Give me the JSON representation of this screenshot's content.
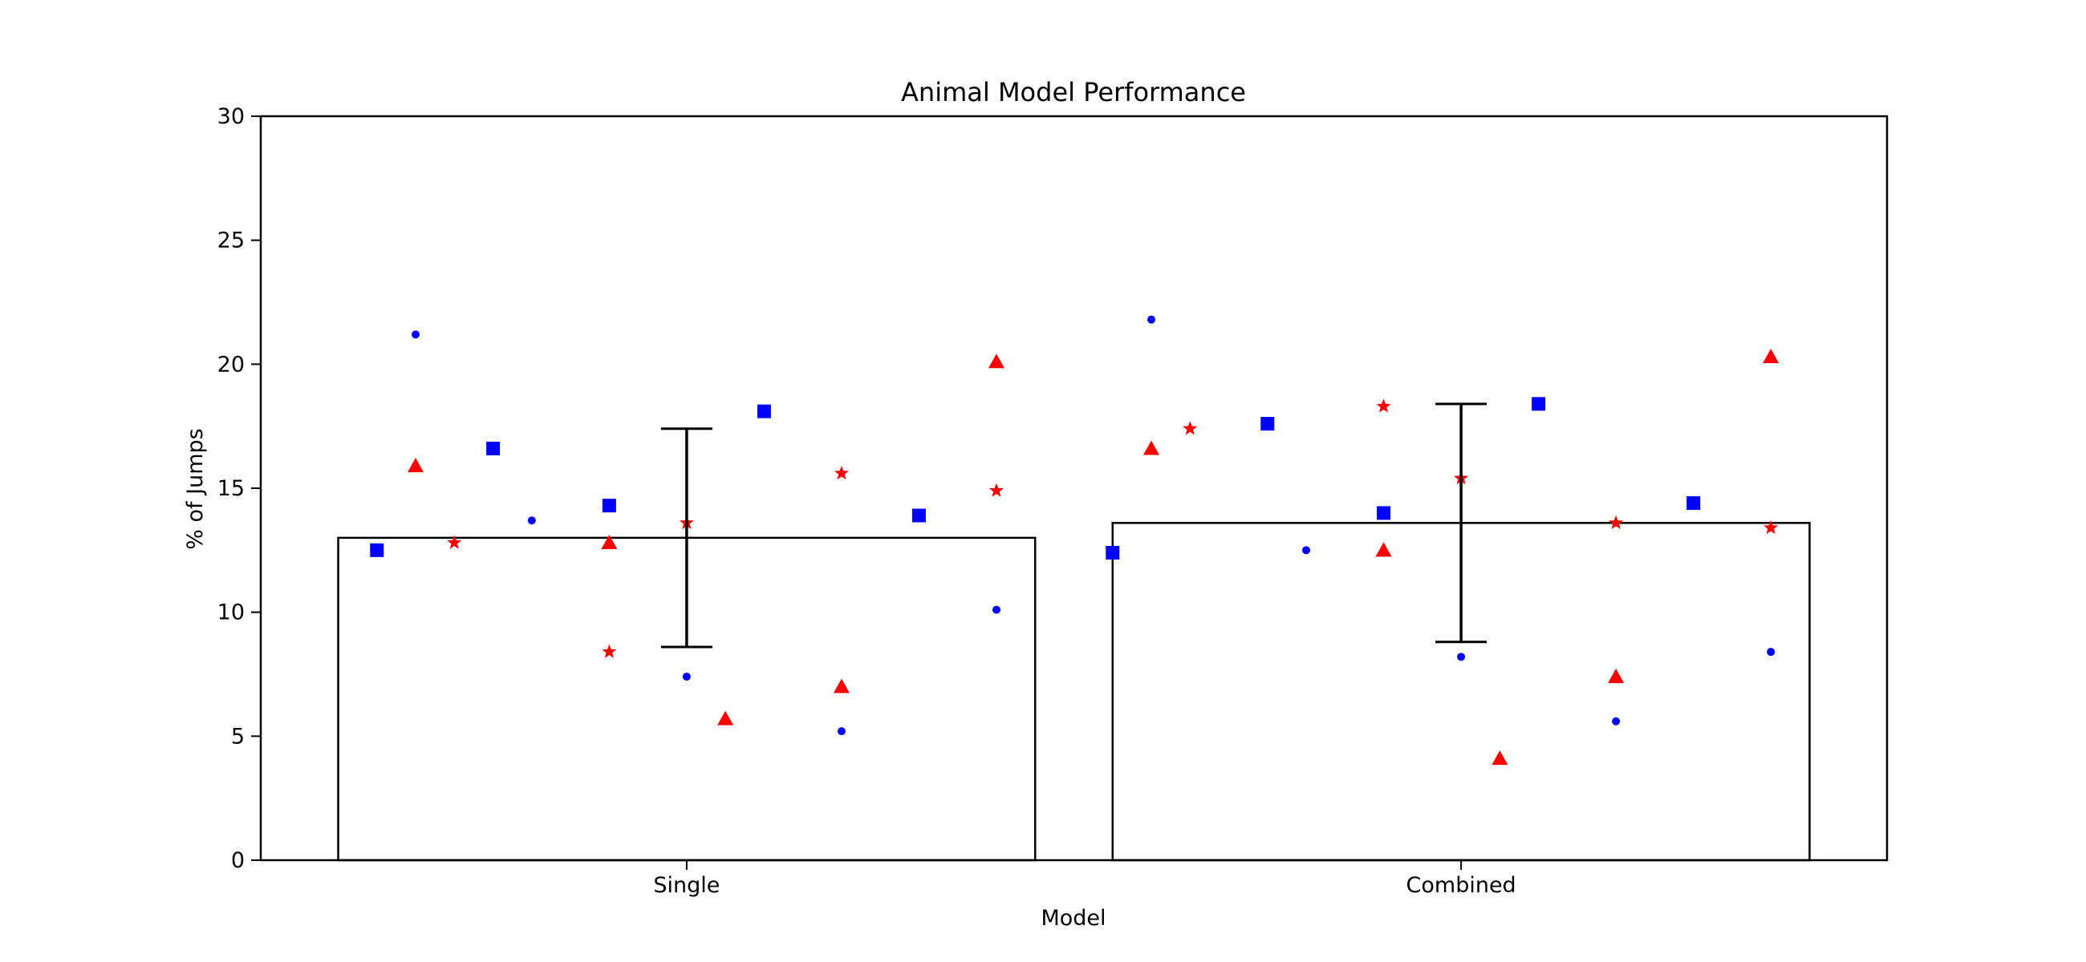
{
  "chart_data": {
    "type": "bar",
    "title": "Animal Model Performance",
    "xlabel": "Model",
    "ylabel": "% of Jumps",
    "categories": [
      "Single",
      "Combined"
    ],
    "ylim": [
      0,
      30
    ],
    "yticks": [
      0,
      5,
      10,
      15,
      20,
      25,
      30
    ],
    "ytick_labels": [
      "0",
      "5",
      "10",
      "15",
      "20",
      "25",
      "30"
    ],
    "grid": false,
    "bars": [
      {
        "category": "Single",
        "value": 13.0,
        "error_low": 8.6,
        "error_high": 17.4
      },
      {
        "category": "Combined",
        "value": 13.6,
        "error_low": 8.8,
        "error_high": 18.4
      }
    ],
    "marker_colors": {
      "blue": "#0000ff",
      "red": "#ff0000"
    },
    "points": [
      {
        "category": "Single",
        "offset": -0.4,
        "y": 12.5,
        "marker": "square",
        "color": "blue"
      },
      {
        "category": "Single",
        "offset": -0.35,
        "y": 21.2,
        "marker": "circle",
        "color": "blue"
      },
      {
        "category": "Single",
        "offset": -0.35,
        "y": 15.9,
        "marker": "triangle",
        "color": "red"
      },
      {
        "category": "Single",
        "offset": -0.3,
        "y": 12.8,
        "marker": "star",
        "color": "red"
      },
      {
        "category": "Single",
        "offset": -0.25,
        "y": 16.6,
        "marker": "square",
        "color": "blue"
      },
      {
        "category": "Single",
        "offset": -0.2,
        "y": 13.7,
        "marker": "circle",
        "color": "blue"
      },
      {
        "category": "Single",
        "offset": -0.1,
        "y": 14.3,
        "marker": "square",
        "color": "blue"
      },
      {
        "category": "Single",
        "offset": -0.1,
        "y": 12.8,
        "marker": "triangle",
        "color": "red"
      },
      {
        "category": "Single",
        "offset": -0.1,
        "y": 8.4,
        "marker": "star",
        "color": "red"
      },
      {
        "category": "Single",
        "offset": 0.0,
        "y": 13.6,
        "marker": "star",
        "color": "red"
      },
      {
        "category": "Single",
        "offset": 0.0,
        "y": 7.4,
        "marker": "circle",
        "color": "blue"
      },
      {
        "category": "Single",
        "offset": 0.05,
        "y": 5.7,
        "marker": "triangle",
        "color": "red"
      },
      {
        "category": "Single",
        "offset": 0.1,
        "y": 18.1,
        "marker": "square",
        "color": "blue"
      },
      {
        "category": "Single",
        "offset": 0.2,
        "y": 15.6,
        "marker": "star",
        "color": "red"
      },
      {
        "category": "Single",
        "offset": 0.2,
        "y": 7.0,
        "marker": "triangle",
        "color": "red"
      },
      {
        "category": "Single",
        "offset": 0.2,
        "y": 5.2,
        "marker": "circle",
        "color": "blue"
      },
      {
        "category": "Single",
        "offset": 0.3,
        "y": 13.9,
        "marker": "square",
        "color": "blue"
      },
      {
        "category": "Single",
        "offset": 0.4,
        "y": 20.1,
        "marker": "triangle",
        "color": "red"
      },
      {
        "category": "Single",
        "offset": 0.4,
        "y": 14.9,
        "marker": "star",
        "color": "red"
      },
      {
        "category": "Single",
        "offset": 0.4,
        "y": 10.1,
        "marker": "circle",
        "color": "blue"
      },
      {
        "category": "Combined",
        "offset": -0.45,
        "y": 12.4,
        "marker": "square",
        "color": "blue"
      },
      {
        "category": "Combined",
        "offset": -0.4,
        "y": 21.8,
        "marker": "circle",
        "color": "blue"
      },
      {
        "category": "Combined",
        "offset": -0.4,
        "y": 16.6,
        "marker": "triangle",
        "color": "red"
      },
      {
        "category": "Combined",
        "offset": -0.35,
        "y": 17.4,
        "marker": "star",
        "color": "red"
      },
      {
        "category": "Combined",
        "offset": -0.25,
        "y": 17.6,
        "marker": "square",
        "color": "blue"
      },
      {
        "category": "Combined",
        "offset": -0.2,
        "y": 12.5,
        "marker": "circle",
        "color": "blue"
      },
      {
        "category": "Combined",
        "offset": -0.1,
        "y": 18.3,
        "marker": "star",
        "color": "red"
      },
      {
        "category": "Combined",
        "offset": -0.1,
        "y": 14.0,
        "marker": "square",
        "color": "blue"
      },
      {
        "category": "Combined",
        "offset": -0.1,
        "y": 12.5,
        "marker": "triangle",
        "color": "red"
      },
      {
        "category": "Combined",
        "offset": 0.0,
        "y": 15.4,
        "marker": "star",
        "color": "red"
      },
      {
        "category": "Combined",
        "offset": 0.0,
        "y": 8.2,
        "marker": "circle",
        "color": "blue"
      },
      {
        "category": "Combined",
        "offset": 0.05,
        "y": 4.1,
        "marker": "triangle",
        "color": "red"
      },
      {
        "category": "Combined",
        "offset": 0.1,
        "y": 18.4,
        "marker": "square",
        "color": "blue"
      },
      {
        "category": "Combined",
        "offset": 0.2,
        "y": 13.6,
        "marker": "star",
        "color": "red"
      },
      {
        "category": "Combined",
        "offset": 0.2,
        "y": 7.4,
        "marker": "triangle",
        "color": "red"
      },
      {
        "category": "Combined",
        "offset": 0.2,
        "y": 5.6,
        "marker": "circle",
        "color": "blue"
      },
      {
        "category": "Combined",
        "offset": 0.3,
        "y": 14.4,
        "marker": "square",
        "color": "blue"
      },
      {
        "category": "Combined",
        "offset": 0.4,
        "y": 20.3,
        "marker": "triangle",
        "color": "red"
      },
      {
        "category": "Combined",
        "offset": 0.4,
        "y": 13.4,
        "marker": "star",
        "color": "red"
      },
      {
        "category": "Combined",
        "offset": 0.4,
        "y": 8.4,
        "marker": "circle",
        "color": "blue"
      }
    ]
  }
}
